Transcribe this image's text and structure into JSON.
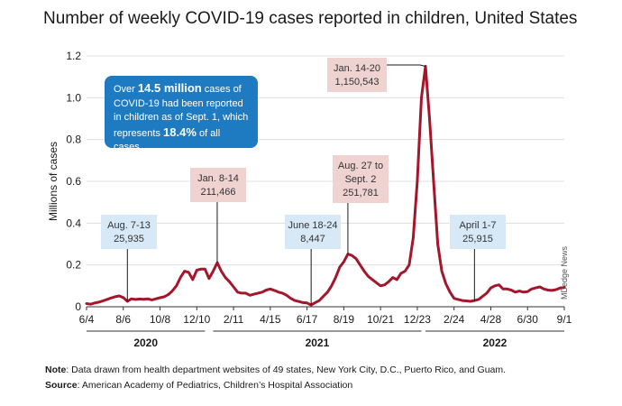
{
  "title": "Number of weekly COVID-19 cases reported in children, United States",
  "info_box": {
    "t1": "Over ",
    "t2": "14.5 million",
    "t3": " cases of COVID-19 had been reported in children as of Sept. 1, which represents ",
    "t4": "18.4%",
    "t5": " of all cases."
  },
  "footnotes": {
    "note_label": "Note",
    "note_text": ": Data drawn from health department websites of 49 states, New York City, D.C., Puerto Rico, and Guam.",
    "source_label": "Source",
    "source_text": ": American Academy of Pediatrics, Children’s Hospital Association"
  },
  "credit": "MDedge News",
  "colors": {
    "line": "#a3162b",
    "blue_label": "#d7e8f6",
    "pink_label": "#efd3d1",
    "info": "#1f7bc1"
  },
  "chart_data": {
    "type": "line",
    "title": "Number of weekly COVID-19 cases reported in children, United States",
    "ylabel": "Millions of cases",
    "ylim": [
      0,
      1.2
    ],
    "yticks": [
      0,
      0.2,
      0.4,
      0.6,
      0.8,
      1.0,
      1.2
    ],
    "ytick_labels": [
      "0",
      "0.2",
      "0.4",
      "0.6",
      "0.8",
      "1.0",
      "1.2"
    ],
    "grid": true,
    "xticks": [
      "6/4",
      "8/6",
      "10/8",
      "12/10",
      "2/11",
      "4/15",
      "6/17",
      "8/19",
      "10/21",
      "12/23",
      "2/24",
      "4/28",
      "6/30",
      "9/1"
    ],
    "year_groups": [
      {
        "label": "2020",
        "start_week": 0,
        "end_week": 29
      },
      {
        "label": "2021",
        "start_week": 31,
        "end_week": 82
      },
      {
        "label": "2022",
        "start_week": 83,
        "end_week": 117
      }
    ],
    "series": [
      {
        "values": [
          0.015,
          0.012,
          0.018,
          0.022,
          0.028,
          0.035,
          0.042,
          0.048,
          0.052,
          0.044,
          0.026,
          0.038,
          0.035,
          0.037,
          0.036,
          0.038,
          0.033,
          0.038,
          0.043,
          0.048,
          0.058,
          0.075,
          0.1,
          0.14,
          0.17,
          0.165,
          0.13,
          0.175,
          0.18,
          0.18,
          0.135,
          0.17,
          0.211,
          0.17,
          0.14,
          0.12,
          0.095,
          0.07,
          0.065,
          0.065,
          0.055,
          0.06,
          0.065,
          0.07,
          0.08,
          0.085,
          0.078,
          0.07,
          0.065,
          0.055,
          0.04,
          0.03,
          0.025,
          0.02,
          0.018,
          0.008,
          0.02,
          0.03,
          0.05,
          0.07,
          0.1,
          0.14,
          0.19,
          0.215,
          0.252,
          0.245,
          0.23,
          0.2,
          0.17,
          0.145,
          0.13,
          0.115,
          0.1,
          0.105,
          0.12,
          0.14,
          0.13,
          0.16,
          0.17,
          0.2,
          0.33,
          0.6,
          1.0,
          1.151,
          0.9,
          0.6,
          0.3,
          0.17,
          0.11,
          0.07,
          0.04,
          0.035,
          0.03,
          0.028,
          0.026,
          0.03,
          0.035,
          0.05,
          0.065,
          0.09,
          0.1,
          0.105,
          0.085,
          0.085,
          0.08,
          0.07,
          0.075,
          0.07,
          0.072,
          0.085,
          0.09,
          0.095,
          0.085,
          0.08,
          0.078,
          0.082,
          0.09,
          0.092
        ]
      }
    ],
    "annotations": [
      {
        "lines": [
          "Aug. 7-13",
          "25,935"
        ],
        "week": 10,
        "value": 0.025935,
        "style": "blue"
      },
      {
        "lines": [
          "Jan. 8-14",
          "211,466"
        ],
        "week": 32,
        "value": 0.211466,
        "style": "pink"
      },
      {
        "lines": [
          "June 18-24",
          "8,447"
        ],
        "week": 55,
        "value": 0.008447,
        "style": "blue"
      },
      {
        "lines": [
          "Aug. 27 to",
          "Sept. 2",
          "251,781"
        ],
        "week": 64,
        "value": 0.251781,
        "style": "pink"
      },
      {
        "lines": [
          "Jan. 14-20",
          "1,150,543"
        ],
        "week": 83,
        "value": 1.150543,
        "style": "pink"
      },
      {
        "lines": [
          "April 1-7",
          "25,915"
        ],
        "week": 95,
        "value": 0.025915,
        "style": "blue"
      }
    ]
  }
}
